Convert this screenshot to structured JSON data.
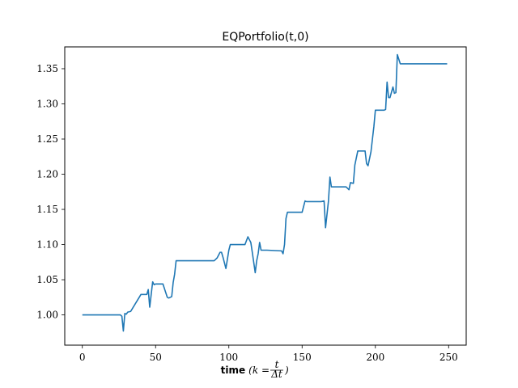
{
  "chart_data": {
    "type": "line",
    "title": "EQPortfolio(t,0)",
    "xlabel": {
      "bold": "time",
      "math_prefix": "(k = ",
      "frac_num": "t",
      "frac_den": "Δt",
      "math_suffix": ")"
    },
    "ylabel": "",
    "xlim": [
      -12,
      262
    ],
    "ylim": [
      0.957,
      1.381
    ],
    "xticks": [
      0,
      50,
      100,
      150,
      200,
      250
    ],
    "xtick_labels": [
      "0",
      "50",
      "100",
      "150",
      "200",
      "250"
    ],
    "yticks": [
      1.0,
      1.05,
      1.1,
      1.15,
      1.2,
      1.25,
      1.3,
      1.35
    ],
    "ytick_labels": [
      "1.00",
      "1.05",
      "1.10",
      "1.15",
      "1.20",
      "1.25",
      "1.30",
      "1.35"
    ],
    "grid": false,
    "line_color": "#1f77b4",
    "series": [
      {
        "x": [
          0,
          26,
          27,
          28,
          29,
          30,
          31,
          33,
          40,
          44,
          45,
          46,
          47,
          48,
          49,
          50,
          55,
          58,
          59,
          61,
          62,
          63,
          64,
          90,
          92,
          94,
          95,
          96,
          98,
          100,
          101,
          110,
          111,
          113,
          115,
          116,
          118,
          119,
          120,
          121,
          122,
          126,
          136,
          137,
          138,
          139,
          140,
          141,
          142,
          143,
          150,
          152,
          153,
          154,
          163,
          165,
          166,
          168,
          169,
          170,
          172,
          180,
          182,
          183,
          185,
          186,
          188,
          191,
          192,
          193,
          194,
          195,
          197,
          199,
          200,
          205,
          206,
          207,
          208,
          209,
          210,
          212,
          213,
          214,
          215,
          217,
          249
        ],
        "y": [
          1.0,
          1.0,
          0.998,
          0.977,
          1.002,
          1.001,
          1.004,
          1.005,
          1.029,
          1.029,
          1.036,
          1.011,
          1.029,
          1.047,
          1.043,
          1.044,
          1.044,
          1.025,
          1.024,
          1.026,
          1.046,
          1.058,
          1.077,
          1.077,
          1.081,
          1.089,
          1.089,
          1.082,
          1.066,
          1.092,
          1.1,
          1.1,
          1.1,
          1.111,
          1.103,
          1.089,
          1.06,
          1.077,
          1.087,
          1.103,
          1.092,
          1.092,
          1.091,
          1.087,
          1.1,
          1.137,
          1.146,
          1.146,
          1.146,
          1.146,
          1.146,
          1.162,
          1.161,
          1.161,
          1.161,
          1.162,
          1.124,
          1.162,
          1.196,
          1.182,
          1.182,
          1.182,
          1.178,
          1.188,
          1.187,
          1.213,
          1.233,
          1.233,
          1.233,
          1.233,
          1.215,
          1.212,
          1.232,
          1.268,
          1.291,
          1.291,
          1.291,
          1.292,
          1.331,
          1.309,
          1.309,
          1.324,
          1.315,
          1.316,
          1.37,
          1.357,
          1.357
        ]
      }
    ]
  }
}
